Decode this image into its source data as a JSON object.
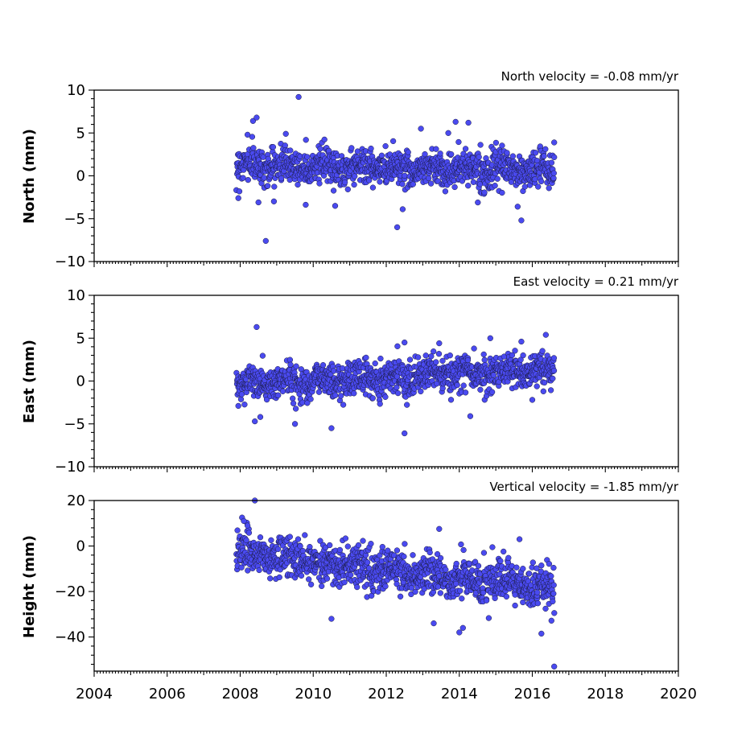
{
  "chart_data": [
    {
      "type": "scatter",
      "ylabel": "North (mm)",
      "annotation": "North velocity = -0.08 mm/yr",
      "velocity_mm_per_yr": -0.08,
      "xlim": [
        2004,
        2020
      ],
      "ylim": [
        -10,
        10
      ],
      "yticks": [
        -10,
        -5,
        0,
        5,
        10
      ],
      "ytick_labels": [
        "−10",
        "−5",
        "0",
        "5",
        "10"
      ],
      "xtick_labels_shown": false,
      "series": [
        {
          "color": "#4a4af0",
          "time_span": [
            2007.9,
            2016.6
          ],
          "offset_at_start": 1.3,
          "scatter_sd": 1.0,
          "outliers": [
            [
              2008.35,
              6.4
            ],
            [
              2008.45,
              6.8
            ],
            [
              2008.2,
              4.8
            ],
            [
              2008.7,
              -7.6
            ],
            [
              2009.6,
              9.2
            ],
            [
              2009.8,
              4.2
            ],
            [
              2009.25,
              4.9
            ],
            [
              2012.3,
              -6.0
            ],
            [
              2012.45,
              -3.9
            ],
            [
              2012.95,
              5.5
            ],
            [
              2013.9,
              6.3
            ],
            [
              2014.25,
              6.2
            ],
            [
              2013.7,
              5.0
            ],
            [
              2015.7,
              -5.2
            ],
            [
              2016.6,
              3.9
            ],
            [
              2015.6,
              -3.6
            ],
            [
              2007.95,
              -2.6
            ],
            [
              2008.5,
              -3.1
            ],
            [
              2010.6,
              -3.5
            ]
          ]
        }
      ]
    },
    {
      "type": "scatter",
      "ylabel": "East (mm)",
      "annotation": "East velocity = 0.21 mm/yr",
      "velocity_mm_per_yr": 0.21,
      "xlim": [
        2004,
        2020
      ],
      "ylim": [
        -10,
        10
      ],
      "yticks": [
        -10,
        -5,
        0,
        5,
        10
      ],
      "ytick_labels": [
        "−10",
        "−5",
        "0",
        "5",
        "10"
      ],
      "xtick_labels_shown": false,
      "series": [
        {
          "color": "#4a4af0",
          "time_span": [
            2007.9,
            2016.6
          ],
          "offset_at_start": -0.4,
          "scatter_sd": 1.0,
          "outliers": [
            [
              2008.45,
              6.3
            ],
            [
              2008.4,
              -4.7
            ],
            [
              2008.55,
              -4.2
            ],
            [
              2009.5,
              -5.0
            ],
            [
              2010.5,
              -5.5
            ],
            [
              2012.5,
              -6.1
            ],
            [
              2014.3,
              -4.1
            ],
            [
              2014.85,
              5.0
            ],
            [
              2015.7,
              4.6
            ],
            [
              2012.5,
              4.5
            ],
            [
              2013.45,
              4.4
            ],
            [
              2016.0,
              -2.2
            ],
            [
              2007.95,
              -2.9
            ]
          ]
        }
      ]
    },
    {
      "type": "scatter",
      "ylabel": "Height (mm)",
      "annotation": "Vertical velocity = -1.85 mm/yr",
      "velocity_mm_per_yr": -1.85,
      "xlim": [
        2004,
        2020
      ],
      "ylim": [
        -55,
        20
      ],
      "yticks": [
        -40,
        -20,
        0,
        20
      ],
      "ytick_labels": [
        "−40",
        "−20",
        "0",
        "20"
      ],
      "xticks": [
        2004,
        2006,
        2008,
        2010,
        2012,
        2014,
        2016,
        2018,
        2020
      ],
      "xtick_labels": [
        "2004",
        "2006",
        "2008",
        "2010",
        "2012",
        "2014",
        "2016",
        "2018",
        "2020"
      ],
      "xtick_labels_shown": true,
      "series": [
        {
          "color": "#4a4af0",
          "time_span": [
            2007.9,
            2016.6
          ],
          "offset_at_start": -3.0,
          "scatter_sd": 4.5,
          "outliers": [
            [
              2008.4,
              20.0
            ],
            [
              2008.05,
              12.5
            ],
            [
              2008.1,
              11.0
            ],
            [
              2008.2,
              9.0
            ],
            [
              2013.45,
              7.5
            ],
            [
              2015.65,
              3.0
            ],
            [
              2016.6,
              -53.0
            ],
            [
              2014.0,
              -38.0
            ],
            [
              2016.25,
              -38.5
            ],
            [
              2010.5,
              -32.0
            ],
            [
              2013.3,
              -34.0
            ],
            [
              2014.1,
              -36.0
            ]
          ]
        }
      ]
    }
  ]
}
